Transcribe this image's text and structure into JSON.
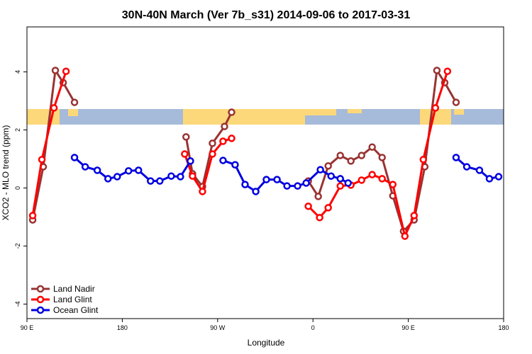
{
  "chart_data": {
    "type": "line",
    "title": "30N-40N March (Ver 7b_s31)   2014-09-06 to 2017-03-31",
    "x_label": "Longitude",
    "y_label": "XCO2 - MLO trend (ppm)",
    "xlim": [
      90,
      540
    ],
    "ylim": [
      -4.5,
      5.55
    ],
    "xticks": [
      {
        "value": 90,
        "label": "90 E"
      },
      180,
      {
        "value": 270,
        "label": "90 W"
      },
      {
        "value": 360,
        "label": "0"
      },
      {
        "value": 450,
        "label": "90 E"
      },
      {
        "value": 540,
        "label": "180"
      }
    ],
    "yticks": [
      4,
      2,
      0,
      -2,
      -4
    ],
    "legend": "bottom-left",
    "series": [
      {
        "name": "Land Nadir",
        "color": "#993333",
        "x": [
          95.4,
          105.4,
          116.8,
          124.2,
          134.9,
          null,
          240.2,
          246.3,
          255.7,
          265.1,
          276.5,
          283.2,
          null,
          355.6,
          365.0,
          374.4,
          385.8,
          395.8,
          405.9,
          415.9,
          425.3,
          435.4,
          445.5,
          455.5,
          465.6,
          477.0,
          484.4,
          495.1
        ],
        "values": [
          -1.1,
          0.73,
          4.05,
          3.63,
          2.95,
          null,
          1.76,
          0.49,
          0.05,
          1.54,
          2.12,
          2.61,
          null,
          0.24,
          -0.29,
          0.76,
          1.12,
          0.93,
          1.12,
          1.41,
          1.05,
          -0.27,
          -1.49,
          -1.1,
          0.73,
          4.05,
          3.63,
          2.95
        ]
      },
      {
        "name": "Land Glint",
        "color": "#ff0000",
        "x": [
          95.4,
          104.1,
          115.5,
          126.9,
          null,
          238.9,
          246.3,
          255.7,
          265.1,
          275.1,
          283.2,
          null,
          355.6,
          366.3,
          374.4,
          385.8,
          395.8,
          405.9,
          415.9,
          425.3,
          435.4,
          446.8,
          455.5,
          464.2,
          475.6,
          487.0
        ],
        "values": [
          -0.95,
          0.98,
          2.76,
          4.02,
          null,
          1.17,
          0.41,
          -0.12,
          1.17,
          1.61,
          1.71,
          null,
          -0.63,
          -1.02,
          -0.68,
          0.07,
          0.1,
          0.27,
          0.46,
          0.32,
          0.12,
          -1.66,
          -0.95,
          0.98,
          2.76,
          4.02
        ]
      },
      {
        "name": "Ocean Glint",
        "color": "#0000e0",
        "x": [
          134.9,
          145.0,
          156.4,
          166.5,
          175.2,
          185.9,
          195.3,
          206.7,
          215.4,
          226.2,
          234.9,
          244.3,
          null,
          275.1,
          286.5,
          295.9,
          306.0,
          316.0,
          326.1,
          335.5,
          345.5,
          353.6,
          367.0,
          377.1,
          385.8,
          393.2,
          null,
          495.1,
          505.2,
          517.2,
          526.6,
          535.3
        ],
        "values": [
          1.05,
          0.73,
          0.61,
          0.32,
          0.39,
          0.59,
          0.61,
          0.24,
          0.24,
          0.41,
          0.39,
          0.93,
          null,
          0.95,
          0.8,
          0.12,
          -0.12,
          0.29,
          0.29,
          0.07,
          0.07,
          0.17,
          0.63,
          0.41,
          0.32,
          0.17,
          null,
          1.05,
          0.73,
          0.61,
          0.32,
          0.39
        ]
      }
    ]
  }
}
